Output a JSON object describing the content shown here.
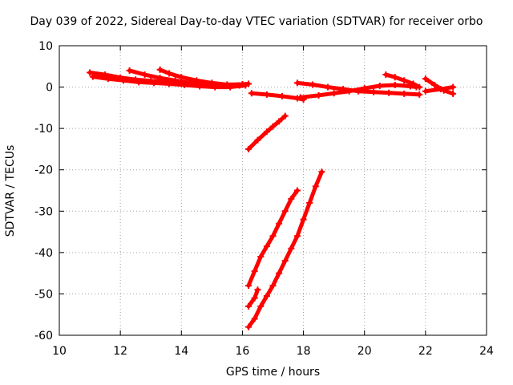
{
  "chart_data": {
    "type": "scatter",
    "title": "Day 039 of 2022, Sidereal Day-to-day VTEC variation (SDTVAR) for receiver orbo",
    "xlabel": "GPS time / hours",
    "ylabel": "SDTVAR / TECUs",
    "xlim": [
      10,
      24
    ],
    "ylim": [
      -60,
      10
    ],
    "xticks": [
      10,
      12,
      14,
      16,
      18,
      20,
      22,
      24
    ],
    "yticks": [
      10,
      0,
      -10,
      -20,
      -30,
      -40,
      -50,
      -60
    ],
    "grid": true,
    "marker": "plus",
    "color": "#ff0000",
    "series": [
      {
        "x": [
          11.0,
          11.5,
          12.0,
          12.5,
          13.0,
          13.5,
          14.0,
          14.5,
          15.0,
          15.5,
          16.0,
          16.2
        ],
        "y": [
          3.5,
          3.0,
          2.3,
          1.8,
          1.5,
          1.2,
          1.0,
          0.8,
          0.6,
          0.6,
          0.7,
          0.8
        ]
      },
      {
        "x": [
          11.1,
          11.6,
          12.1,
          12.6,
          13.1,
          13.6,
          14.1,
          14.6,
          15.1,
          15.6,
          16.1
        ],
        "y": [
          2.5,
          2.0,
          1.6,
          1.2,
          1.0,
          0.8,
          0.5,
          0.2,
          0.0,
          0.0,
          0.4
        ]
      },
      {
        "x": [
          12.3,
          12.8,
          13.3,
          13.8,
          14.3,
          14.8
        ],
        "y": [
          4.0,
          3.0,
          2.2,
          1.6,
          1.0,
          0.6
        ]
      },
      {
        "x": [
          13.3,
          13.6,
          14.0,
          14.5,
          15.0,
          15.5,
          15.9
        ],
        "y": [
          4.2,
          3.3,
          2.4,
          1.6,
          1.0,
          0.6,
          0.4
        ]
      },
      {
        "x": [
          16.3,
          16.8,
          17.3,
          17.8,
          18.0
        ],
        "y": [
          -1.5,
          -1.8,
          -2.2,
          -2.7,
          -3.0
        ]
      },
      {
        "x": [
          17.8,
          18.3,
          18.8,
          19.3,
          19.8,
          20.3,
          20.8,
          21.3,
          21.8
        ],
        "y": [
          1.0,
          0.6,
          0.0,
          -0.5,
          -1.0,
          -1.2,
          -1.4,
          -1.6,
          -1.8
        ]
      },
      {
        "x": [
          17.9,
          18.5,
          19.0,
          19.5,
          20.0,
          20.5,
          21.0,
          21.5,
          21.7
        ],
        "y": [
          -2.5,
          -2.0,
          -1.5,
          -1.0,
          -0.3,
          0.3,
          0.5,
          0.2,
          0.0
        ]
      },
      {
        "x": [
          20.7,
          21.0,
          21.3,
          21.6,
          21.8
        ],
        "y": [
          3.0,
          2.4,
          1.6,
          0.8,
          0.0
        ]
      },
      {
        "x": [
          22.0,
          22.3,
          22.6,
          22.9
        ],
        "y": [
          2.0,
          0.5,
          -0.8,
          -1.6
        ]
      },
      {
        "x": [
          22.0,
          22.5,
          22.9
        ],
        "y": [
          -1.0,
          -0.5,
          0.0
        ]
      },
      {
        "x": [
          16.2,
          16.5,
          16.8,
          17.0,
          17.2,
          17.4
        ],
        "y": [
          -15.0,
          -12.8,
          -10.8,
          -9.5,
          -8.3,
          -7.0
        ]
      },
      {
        "x": [
          16.2,
          16.4,
          16.6,
          16.8,
          17.0,
          17.2,
          17.4,
          17.6,
          17.8
        ],
        "y": [
          -48.0,
          -44.5,
          -41.0,
          -38.5,
          -36.0,
          -33.0,
          -30.0,
          -27.0,
          -25.0
        ]
      },
      {
        "x": [
          16.2,
          16.4,
          16.5
        ],
        "y": [
          -53.0,
          -51.0,
          -49.0
        ]
      },
      {
        "x": [
          16.2,
          16.4,
          16.6,
          16.8,
          17.0,
          17.2,
          17.4,
          17.6,
          17.8,
          18.0,
          18.2,
          18.4,
          18.6
        ],
        "y": [
          -58.0,
          -56.0,
          -53.0,
          -50.5,
          -48.0,
          -45.0,
          -42.0,
          -39.0,
          -36.0,
          -32.0,
          -28.0,
          -24.0,
          -20.5
        ]
      }
    ]
  }
}
